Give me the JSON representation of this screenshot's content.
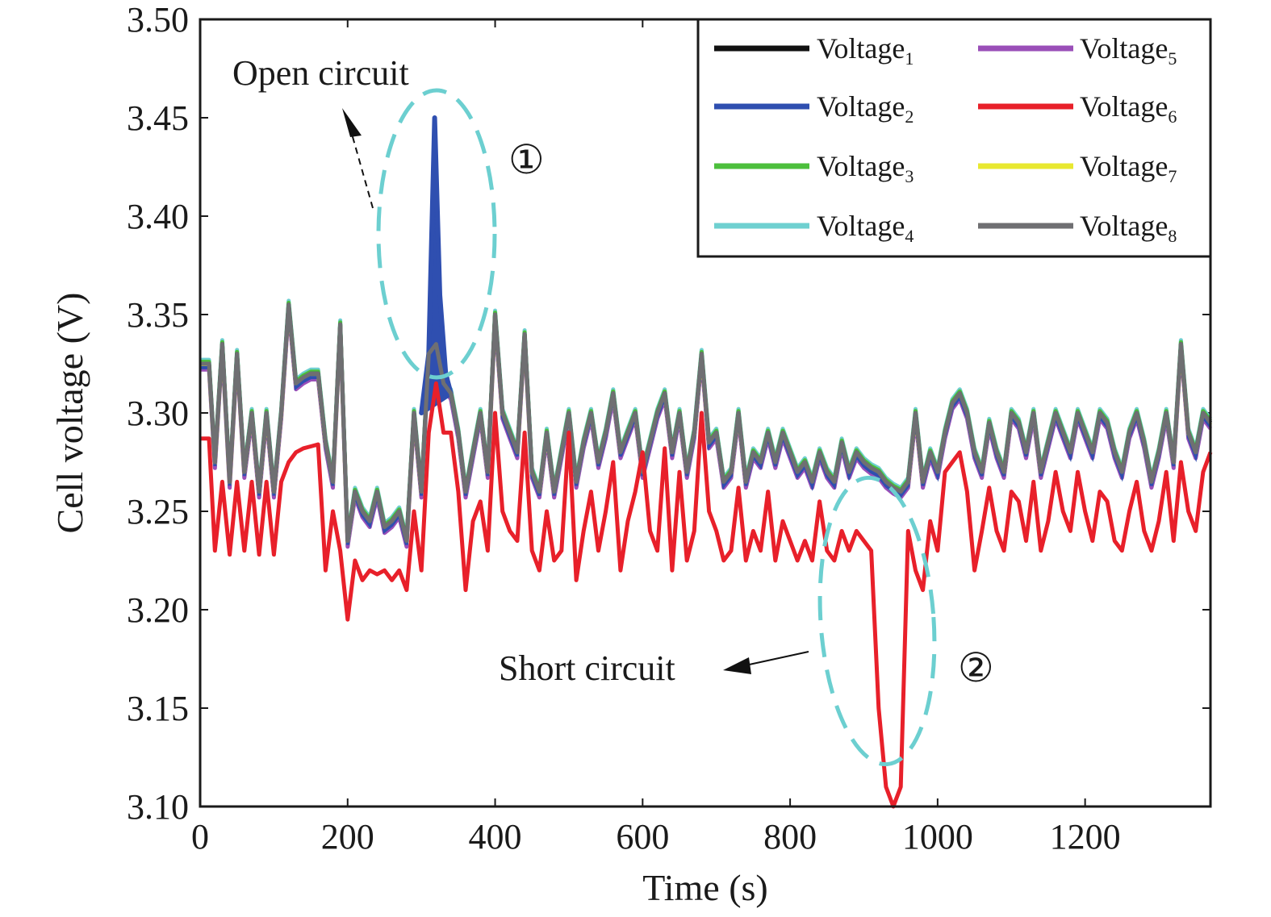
{
  "chart_data": {
    "type": "line",
    "xlabel": "Time (s)",
    "ylabel": "Cell voltage (V)",
    "xlim": [
      0,
      1370
    ],
    "ylim": [
      3.1,
      3.5
    ],
    "x_ticks": [
      0,
      200,
      400,
      600,
      800,
      1000,
      1200
    ],
    "y_ticks": [
      "3.10",
      "3.15",
      "3.20",
      "3.25",
      "3.30",
      "3.35",
      "3.40",
      "3.45",
      "3.50"
    ],
    "grid": false,
    "legend_position": "top-right",
    "series": [
      {
        "name": "Voltage",
        "sub": "1",
        "color": "#111111",
        "offset": 0.0
      },
      {
        "name": "Voltage",
        "sub": "2",
        "color": "#2f4fb0",
        "offset": -0.002
      },
      {
        "name": "Voltage",
        "sub": "3",
        "color": "#4cbf3c",
        "offset": 0.001
      },
      {
        "name": "Voltage",
        "sub": "4",
        "color": "#6fd0d0",
        "offset": 0.002
      },
      {
        "name": "Voltage",
        "sub": "5",
        "color": "#9a4fb8",
        "offset": -0.003
      },
      {
        "name": "Voltage",
        "sub": "6",
        "color": "#e8202a",
        "offset": 0.0
      },
      {
        "name": "Voltage",
        "sub": "7",
        "color": "#e8e830",
        "offset": -0.001
      },
      {
        "name": "Voltage",
        "sub": "8",
        "color": "#6f6f72",
        "offset": 0.0
      }
    ],
    "normal_cells": {
      "x": [
        0,
        12,
        20,
        30,
        40,
        50,
        60,
        70,
        80,
        90,
        100,
        110,
        120,
        130,
        140,
        150,
        160,
        170,
        180,
        190,
        200,
        210,
        220,
        230,
        240,
        250,
        260,
        270,
        280,
        290,
        300,
        310,
        320,
        330,
        340,
        350,
        360,
        370,
        380,
        390,
        400,
        410,
        420,
        430,
        440,
        450,
        460,
        470,
        480,
        490,
        500,
        510,
        520,
        530,
        540,
        550,
        560,
        570,
        580,
        590,
        600,
        610,
        620,
        630,
        640,
        650,
        660,
        670,
        680,
        690,
        700,
        710,
        720,
        730,
        740,
        750,
        760,
        770,
        780,
        790,
        800,
        810,
        820,
        830,
        840,
        850,
        860,
        870,
        880,
        890,
        900,
        910,
        920,
        930,
        940,
        950,
        960,
        970,
        980,
        990,
        1000,
        1010,
        1020,
        1030,
        1040,
        1050,
        1060,
        1070,
        1080,
        1090,
        1100,
        1110,
        1120,
        1130,
        1140,
        1150,
        1160,
        1170,
        1180,
        1190,
        1200,
        1210,
        1220,
        1230,
        1240,
        1250,
        1260,
        1270,
        1280,
        1290,
        1300,
        1310,
        1320,
        1330,
        1340,
        1350,
        1360,
        1370
      ],
      "y": [
        3.325,
        3.325,
        3.275,
        3.335,
        3.265,
        3.33,
        3.27,
        3.3,
        3.26,
        3.3,
        3.26,
        3.3,
        3.355,
        3.315,
        3.318,
        3.32,
        3.32,
        3.285,
        3.265,
        3.345,
        3.235,
        3.26,
        3.25,
        3.245,
        3.26,
        3.242,
        3.245,
        3.25,
        3.235,
        3.3,
        3.26,
        3.33,
        3.335,
        3.315,
        3.31,
        3.29,
        3.26,
        3.28,
        3.3,
        3.27,
        3.35,
        3.3,
        3.29,
        3.28,
        3.34,
        3.27,
        3.26,
        3.29,
        3.26,
        3.28,
        3.3,
        3.265,
        3.285,
        3.3,
        3.275,
        3.29,
        3.31,
        3.28,
        3.29,
        3.3,
        3.27,
        3.285,
        3.3,
        3.31,
        3.28,
        3.3,
        3.27,
        3.29,
        3.33,
        3.285,
        3.29,
        3.265,
        3.27,
        3.3,
        3.265,
        3.28,
        3.275,
        3.29,
        3.275,
        3.29,
        3.28,
        3.27,
        3.275,
        3.265,
        3.28,
        3.27,
        3.265,
        3.285,
        3.27,
        3.28,
        3.275,
        3.272,
        3.27,
        3.265,
        3.262,
        3.26,
        3.265,
        3.3,
        3.265,
        3.28,
        3.27,
        3.29,
        3.305,
        3.31,
        3.3,
        3.28,
        3.27,
        3.295,
        3.28,
        3.27,
        3.3,
        3.295,
        3.28,
        3.3,
        3.27,
        3.285,
        3.3,
        3.29,
        3.28,
        3.3,
        3.29,
        3.28,
        3.3,
        3.295,
        3.28,
        3.27,
        3.29,
        3.3,
        3.285,
        3.265,
        3.28,
        3.3,
        3.275,
        3.335,
        3.29,
        3.28,
        3.3,
        3.295
      ]
    },
    "cell2_open_circuit": {
      "x": [
        300,
        310,
        318,
        325,
        333,
        340
      ],
      "y": [
        3.3,
        3.33,
        3.45,
        3.36,
        3.32,
        3.31
      ]
    },
    "cell6": {
      "x": [
        0,
        12,
        20,
        30,
        40,
        50,
        60,
        70,
        80,
        90,
        100,
        110,
        120,
        130,
        140,
        150,
        160,
        170,
        180,
        190,
        200,
        210,
        220,
        230,
        240,
        250,
        260,
        270,
        280,
        290,
        300,
        310,
        320,
        330,
        340,
        350,
        360,
        370,
        380,
        390,
        400,
        410,
        420,
        430,
        440,
        450,
        460,
        470,
        480,
        490,
        500,
        510,
        520,
        530,
        540,
        550,
        560,
        570,
        580,
        590,
        600,
        610,
        620,
        630,
        640,
        650,
        660,
        670,
        680,
        690,
        700,
        710,
        720,
        730,
        740,
        750,
        760,
        770,
        780,
        790,
        800,
        810,
        820,
        830,
        840,
        850,
        860,
        870,
        880,
        890,
        900,
        910,
        920,
        930,
        940,
        950,
        960,
        970,
        980,
        990,
        1000,
        1010,
        1020,
        1030,
        1040,
        1050,
        1060,
        1070,
        1080,
        1090,
        1100,
        1110,
        1120,
        1130,
        1140,
        1150,
        1160,
        1170,
        1180,
        1190,
        1200,
        1210,
        1220,
        1230,
        1240,
        1250,
        1260,
        1270,
        1280,
        1290,
        1300,
        1310,
        1320,
        1330,
        1340,
        1350,
        1360,
        1370
      ],
      "y": [
        3.287,
        3.287,
        3.23,
        3.265,
        3.228,
        3.265,
        3.23,
        3.265,
        3.228,
        3.265,
        3.228,
        3.265,
        3.275,
        3.28,
        3.282,
        3.283,
        3.284,
        3.22,
        3.25,
        3.23,
        3.195,
        3.225,
        3.215,
        3.22,
        3.218,
        3.22,
        3.215,
        3.22,
        3.21,
        3.25,
        3.22,
        3.29,
        3.315,
        3.29,
        3.29,
        3.26,
        3.21,
        3.245,
        3.255,
        3.23,
        3.3,
        3.25,
        3.24,
        3.235,
        3.29,
        3.23,
        3.22,
        3.25,
        3.225,
        3.23,
        3.29,
        3.215,
        3.24,
        3.26,
        3.23,
        3.25,
        3.275,
        3.22,
        3.245,
        3.26,
        3.28,
        3.24,
        3.23,
        3.282,
        3.22,
        3.27,
        3.225,
        3.24,
        3.3,
        3.25,
        3.24,
        3.225,
        3.23,
        3.262,
        3.225,
        3.24,
        3.23,
        3.26,
        3.225,
        3.245,
        3.235,
        3.225,
        3.235,
        3.225,
        3.255,
        3.23,
        3.225,
        3.24,
        3.23,
        3.24,
        3.235,
        3.23,
        3.15,
        3.11,
        3.1,
        3.11,
        3.24,
        3.22,
        3.21,
        3.245,
        3.23,
        3.27,
        3.275,
        3.28,
        3.26,
        3.22,
        3.24,
        3.262,
        3.24,
        3.23,
        3.26,
        3.255,
        3.235,
        3.265,
        3.23,
        3.245,
        3.27,
        3.25,
        3.24,
        3.27,
        3.25,
        3.235,
        3.26,
        3.255,
        3.235,
        3.23,
        3.25,
        3.265,
        3.24,
        3.23,
        3.245,
        3.27,
        3.235,
        3.275,
        3.25,
        3.24,
        3.27,
        3.28
      ]
    },
    "annotations": [
      {
        "label": "Open circuit",
        "marker": "①"
      },
      {
        "label": "Short circuit",
        "marker": "②"
      }
    ]
  }
}
